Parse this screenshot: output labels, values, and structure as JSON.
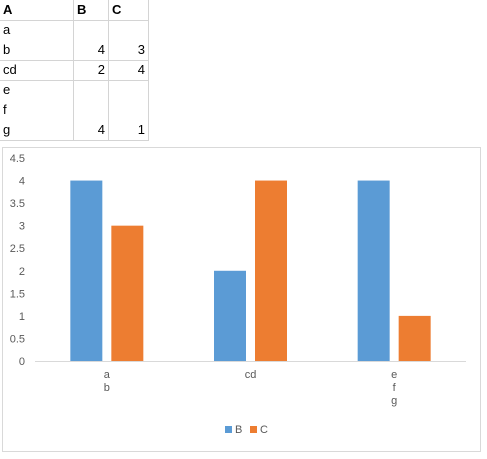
{
  "sheet": {
    "headers": [
      "A",
      "B",
      "C"
    ],
    "rows": [
      [
        "a",
        "",
        ""
      ],
      [
        "b",
        "4",
        "3"
      ],
      [
        "cd",
        "2",
        "4"
      ],
      [
        "e",
        "",
        ""
      ],
      [
        "f",
        "",
        ""
      ],
      [
        "g",
        "4",
        "1"
      ]
    ]
  },
  "chart_data": {
    "type": "bar",
    "categories": [
      [
        "a",
        "b"
      ],
      [
        "cd"
      ],
      [
        "e",
        "f",
        "g"
      ]
    ],
    "series": [
      {
        "name": "B",
        "values": [
          4,
          2,
          4
        ],
        "color": "#5b9bd5"
      },
      {
        "name": "C",
        "values": [
          3,
          4,
          1
        ],
        "color": "#ed7d31"
      }
    ],
    "y_ticks": [
      "0",
      "0.5",
      "1",
      "1.5",
      "2",
      "2.5",
      "3",
      "3.5",
      "4",
      "4.5"
    ],
    "ylim": [
      0,
      4.5
    ],
    "grid": false,
    "legend_position": "bottom"
  }
}
